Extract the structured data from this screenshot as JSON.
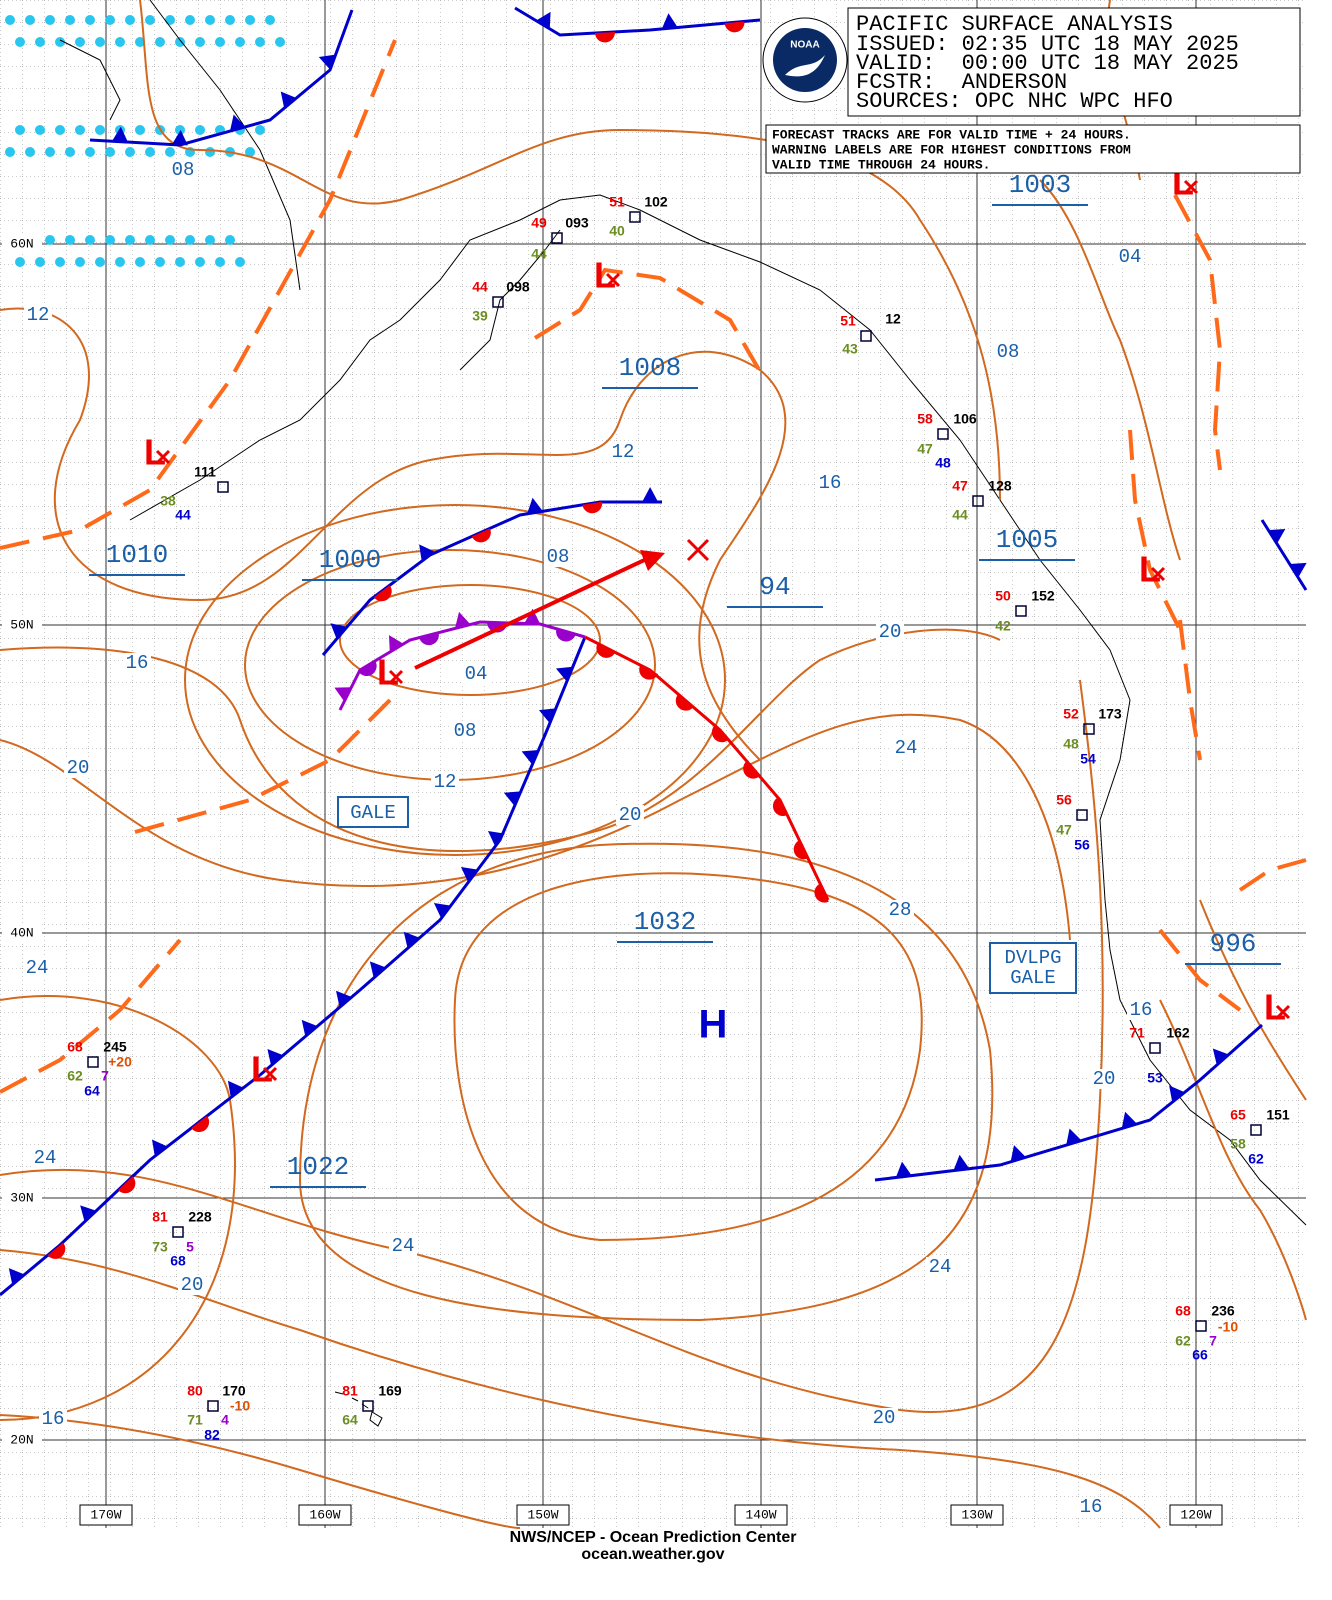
{
  "header": {
    "title": "PACIFIC SURFACE ANALYSIS",
    "issued": "ISSUED: 02:35 UTC 18 MAY 2025",
    "valid": "VALID:  00:00 UTC 18 MAY 2025",
    "forecaster": "FCSTR:  ANDERSON",
    "sources": "SOURCES: OPC NHC WPC HFO"
  },
  "logo": "NOAA",
  "note": [
    "FORECAST TRACKS ARE FOR VALID TIME + 24 HOURS.",
    "WARNING LABELS ARE FOR HIGHEST CONDITIONS FROM",
    "VALID TIME THROUGH 24 HOURS."
  ],
  "latitude_labels": [
    "60N",
    "50N",
    "40N",
    "30N",
    "20N"
  ],
  "longitude_labels": [
    "170W",
    "160W",
    "150W",
    "140W",
    "130W",
    "120W"
  ],
  "center_pressures": [
    "1003",
    "1008",
    "1010",
    "1000",
    "94",
    "1005",
    "1032",
    "1022",
    "996"
  ],
  "isobar_labels": [
    "08",
    "12",
    "04",
    "08",
    "12",
    "16",
    "08",
    "16",
    "04",
    "20",
    "08",
    "12",
    "20",
    "24",
    "20",
    "28",
    "24",
    "16",
    "20",
    "24",
    "24",
    "24",
    "20",
    "20",
    "16",
    "16"
  ],
  "symbols": {
    "low": "L",
    "high": "H"
  },
  "warnings": {
    "gale": "GALE",
    "developing_gale": [
      "DVLPG",
      "GALE"
    ]
  },
  "stations": [
    [
      "111",
      "38",
      "44"
    ],
    [
      "44",
      "098",
      "39"
    ],
    [
      "49",
      "093",
      "44"
    ],
    [
      "51",
      "102",
      "40"
    ],
    [
      "51",
      "12",
      "43"
    ],
    [
      "58",
      "106",
      "47",
      "48"
    ],
    [
      "47",
      "128",
      "44"
    ],
    [
      "50",
      "152",
      "42"
    ],
    [
      "52",
      "173",
      "48",
      "54"
    ],
    [
      "56",
      "47",
      "56"
    ],
    [
      "71",
      "162",
      "53"
    ],
    [
      "65",
      "151",
      "58",
      "62"
    ],
    [
      "68",
      "236",
      "62",
      "7",
      "66",
      "-10"
    ],
    [
      "68",
      "245",
      "62",
      "7",
      "64",
      "+20"
    ],
    [
      "81",
      "228",
      "73",
      "5",
      "68"
    ],
    [
      "80",
      "170",
      "71",
      "4",
      "82",
      "-10"
    ],
    [
      "81",
      "169",
      "64"
    ]
  ],
  "footer": [
    "NWS/NCEP - Ocean Prediction Center",
    "ocean.weather.gov"
  ]
}
